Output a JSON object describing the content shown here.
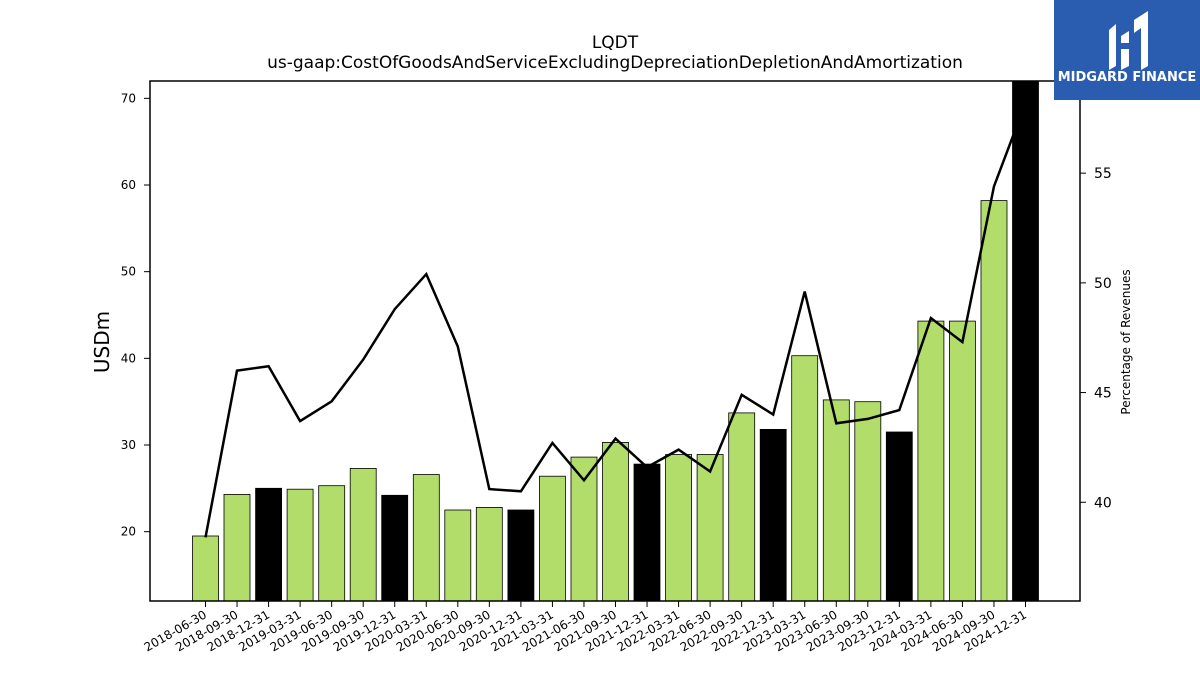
{
  "chart_data": {
    "type": "bar",
    "title": "LQDT",
    "subtitle": "us-gaap:CostOfGoodsAndServiceExcludingDepreciationDepletionAndAmortization",
    "ylabel": "USDm",
    "y2label": "Percentage of Revenues",
    "ylim": [
      12,
      72
    ],
    "y2lim": [
      35.5,
      59.2
    ],
    "yticks": [
      20,
      30,
      40,
      50,
      60,
      70
    ],
    "y2ticks": [
      40,
      45,
      50,
      55
    ],
    "grid": false,
    "categories": [
      "2018-06-30",
      "2018-09-30",
      "2018-12-31",
      "2019-03-31",
      "2019-06-30",
      "2019-09-30",
      "2019-12-31",
      "2020-03-31",
      "2020-06-30",
      "2020-09-30",
      "2020-12-31",
      "2021-03-31",
      "2021-06-30",
      "2021-09-30",
      "2021-12-31",
      "2022-03-31",
      "2022-06-30",
      "2022-09-30",
      "2022-12-31",
      "2023-03-31",
      "2023-06-30",
      "2023-09-30",
      "2023-12-31",
      "2024-03-31",
      "2024-06-30",
      "2024-09-30",
      "2024-12-31"
    ],
    "series": [
      {
        "type": "bar",
        "axis": "left",
        "values": [
          19.5,
          24.3,
          25.0,
          24.9,
          25.3,
          27.3,
          24.2,
          26.6,
          22.5,
          22.8,
          22.5,
          26.4,
          28.6,
          30.3,
          27.8,
          28.9,
          28.9,
          33.7,
          31.8,
          40.3,
          35.2,
          35.0,
          31.5,
          44.3,
          44.3,
          58.2,
          72.5
        ],
        "colors": [
          "#b2dd6a",
          "#b2dd6a",
          "#000000",
          "#b2dd6a",
          "#b2dd6a",
          "#b2dd6a",
          "#000000",
          "#b2dd6a",
          "#b2dd6a",
          "#b2dd6a",
          "#000000",
          "#b2dd6a",
          "#b2dd6a",
          "#b2dd6a",
          "#000000",
          "#b2dd6a",
          "#b2dd6a",
          "#b2dd6a",
          "#000000",
          "#b2dd6a",
          "#b2dd6a",
          "#b2dd6a",
          "#000000",
          "#b2dd6a",
          "#b2dd6a",
          "#b2dd6a",
          "#000000"
        ]
      },
      {
        "type": "line",
        "axis": "right",
        "color": "#000000",
        "values": [
          38.4,
          46.0,
          46.2,
          43.7,
          44.6,
          46.5,
          48.8,
          50.4,
          47.1,
          40.6,
          40.5,
          42.7,
          41.0,
          42.9,
          41.6,
          42.4,
          41.4,
          44.9,
          44.0,
          49.6,
          43.6,
          43.8,
          44.2,
          48.4,
          47.3,
          54.4,
          58.2
        ]
      }
    ]
  },
  "logo": {
    "text": "MIDGARD FINANCE",
    "bg_color": "#2a5db0"
  }
}
